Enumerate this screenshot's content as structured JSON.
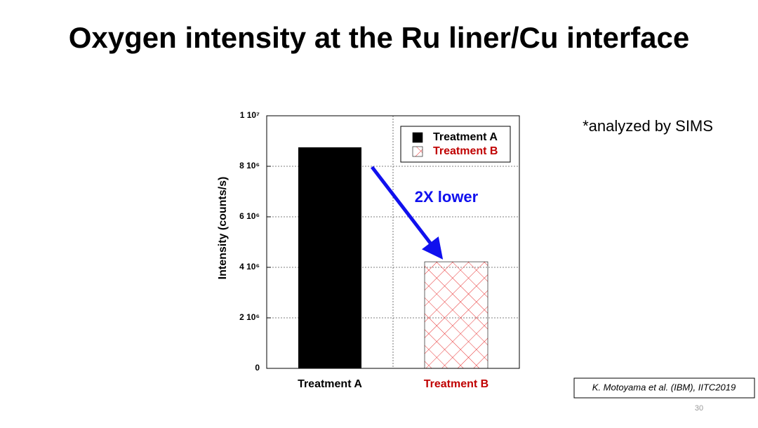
{
  "chart_data": {
    "type": "bar",
    "title": "Oxygen intensity at the Ru liner/Cu interface",
    "y_label": "Intensity (counts/s)",
    "categories": [
      "Treatment A",
      "Treatment B"
    ],
    "series": [
      {
        "name": "Treatment A",
        "color": "#000000",
        "values": [
          8750000,
          null
        ]
      },
      {
        "name": "Treatment B",
        "color": "#e83030",
        "label_color": "#c00000",
        "pattern": "crosshatch",
        "values": [
          null,
          4220000
        ]
      }
    ],
    "ylim": [
      0,
      10000000
    ],
    "yticks": [
      0,
      {
        "value": 2000000,
        "label": "2 10⁶"
      },
      {
        "value": 4000000,
        "label": "4 10⁶"
      },
      {
        "value": 6000000,
        "label": "6 10⁶"
      },
      {
        "value": 8000000,
        "label": "8 10⁶"
      },
      {
        "value": 10000000,
        "label": "1 10⁷"
      }
    ],
    "grid": true,
    "legend": "upper-right",
    "annotation": "2X lower",
    "note": "*analyzed by SIMS",
    "citation": "K. Motoyama et al. (IBM), IITC2019",
    "page_number": "30"
  }
}
